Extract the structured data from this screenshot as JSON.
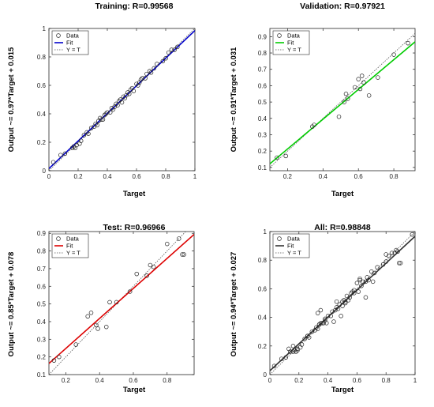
{
  "chart_data": [
    {
      "type": "scatter",
      "title": "Training: R=0.99568",
      "xlabel": "Target",
      "ylabel": "Output ~= 0.97*Target + 0.015",
      "xlim": [
        0,
        1
      ],
      "ylim": [
        0,
        1
      ],
      "x_ticks": [
        "0",
        "0.2",
        "0.4",
        "0.6",
        "0.8",
        "1"
      ],
      "y_ticks": [
        "0",
        "0.2",
        "0.4",
        "0.6",
        "0.8",
        "1"
      ],
      "fit_color": "#0000cc",
      "fit": {
        "slope": 0.97,
        "intercept": 0.015
      },
      "legend": [
        "Data",
        "Fit",
        "Y = T"
      ],
      "legend_position": "top-left",
      "grid": false,
      "points": [
        [
          0.03,
          0.06
        ],
        [
          0.08,
          0.11
        ],
        [
          0.11,
          0.12
        ],
        [
          0.16,
          0.16
        ],
        [
          0.17,
          0.17
        ],
        [
          0.18,
          0.16
        ],
        [
          0.19,
          0.18
        ],
        [
          0.21,
          0.19
        ],
        [
          0.22,
          0.21
        ],
        [
          0.24,
          0.25
        ],
        [
          0.26,
          0.27
        ],
        [
          0.27,
          0.26
        ],
        [
          0.29,
          0.3
        ],
        [
          0.31,
          0.31
        ],
        [
          0.32,
          0.33
        ],
        [
          0.33,
          0.32
        ],
        [
          0.34,
          0.35
        ],
        [
          0.35,
          0.37
        ],
        [
          0.36,
          0.36
        ],
        [
          0.37,
          0.36
        ],
        [
          0.38,
          0.39
        ],
        [
          0.39,
          0.4
        ],
        [
          0.4,
          0.41
        ],
        [
          0.42,
          0.41
        ],
        [
          0.43,
          0.44
        ],
        [
          0.44,
          0.43
        ],
        [
          0.45,
          0.45
        ],
        [
          0.46,
          0.47
        ],
        [
          0.47,
          0.46
        ],
        [
          0.48,
          0.49
        ],
        [
          0.49,
          0.5
        ],
        [
          0.5,
          0.48
        ],
        [
          0.51,
          0.52
        ],
        [
          0.52,
          0.51
        ],
        [
          0.53,
          0.53
        ],
        [
          0.54,
          0.55
        ],
        [
          0.55,
          0.54
        ],
        [
          0.56,
          0.57
        ],
        [
          0.57,
          0.58
        ],
        [
          0.58,
          0.56
        ],
        [
          0.6,
          0.61
        ],
        [
          0.61,
          0.6
        ],
        [
          0.62,
          0.62
        ],
        [
          0.63,
          0.64
        ],
        [
          0.64,
          0.65
        ],
        [
          0.66,
          0.65
        ],
        [
          0.67,
          0.68
        ],
        [
          0.69,
          0.7
        ],
        [
          0.7,
          0.69
        ],
        [
          0.72,
          0.72
        ],
        [
          0.74,
          0.75
        ],
        [
          0.78,
          0.77
        ],
        [
          0.8,
          0.79
        ],
        [
          0.82,
          0.83
        ],
        [
          0.84,
          0.85
        ],
        [
          0.86,
          0.85
        ],
        [
          0.88,
          0.87
        ]
      ]
    },
    {
      "type": "scatter",
      "title": "Validation: R=0.97921",
      "xlabel": "Target",
      "ylabel": "Output ~= 0.91*Target + 0.031",
      "xlim": [
        0.1,
        0.92
      ],
      "ylim": [
        0.08,
        0.95
      ],
      "x_ticks": [
        "0.2",
        "0.4",
        "0.6",
        "0.8"
      ],
      "y_ticks": [
        "0.1",
        "0.2",
        "0.3",
        "0.4",
        "0.5",
        "0.6",
        "0.7",
        "0.8",
        "0.9"
      ],
      "fit_color": "#00cc00",
      "fit": {
        "slope": 0.91,
        "intercept": 0.031
      },
      "legend": [
        "Data",
        "Fit",
        "Y = T"
      ],
      "legend_position": "top-left",
      "grid": false,
      "points": [
        [
          0.14,
          0.16
        ],
        [
          0.19,
          0.17
        ],
        [
          0.34,
          0.35
        ],
        [
          0.35,
          0.36
        ],
        [
          0.49,
          0.41
        ],
        [
          0.52,
          0.5
        ],
        [
          0.53,
          0.55
        ],
        [
          0.54,
          0.52
        ],
        [
          0.58,
          0.59
        ],
        [
          0.6,
          0.64
        ],
        [
          0.61,
          0.58
        ],
        [
          0.62,
          0.66
        ],
        [
          0.63,
          0.62
        ],
        [
          0.66,
          0.54
        ],
        [
          0.71,
          0.65
        ],
        [
          0.8,
          0.79
        ],
        [
          0.88,
          0.86
        ]
      ]
    },
    {
      "type": "scatter",
      "title": "Test: R=0.96966",
      "xlabel": "Target",
      "ylabel": "Output ~= 0.85*Target + 0.078",
      "xlim": [
        0.1,
        0.96
      ],
      "ylim": [
        0.1,
        0.91
      ],
      "x_ticks": [
        "0.2",
        "0.4",
        "0.6",
        "0.8"
      ],
      "y_ticks": [
        "0.1",
        "0.2",
        "0.3",
        "0.4",
        "0.5",
        "0.6",
        "0.7",
        "0.8",
        "0.9"
      ],
      "fit_color": "#dd0000",
      "fit": {
        "slope": 0.85,
        "intercept": 0.078
      },
      "legend": [
        "Data",
        "Fit",
        "Y = T"
      ],
      "legend_position": "top-left",
      "grid": false,
      "points": [
        [
          0.13,
          0.18
        ],
        [
          0.16,
          0.2
        ],
        [
          0.26,
          0.27
        ],
        [
          0.33,
          0.43
        ],
        [
          0.35,
          0.45
        ],
        [
          0.38,
          0.38
        ],
        [
          0.39,
          0.36
        ],
        [
          0.44,
          0.37
        ],
        [
          0.46,
          0.51
        ],
        [
          0.5,
          0.51
        ],
        [
          0.58,
          0.57
        ],
        [
          0.62,
          0.67
        ],
        [
          0.68,
          0.66
        ],
        [
          0.7,
          0.72
        ],
        [
          0.72,
          0.71
        ],
        [
          0.8,
          0.84
        ],
        [
          0.87,
          0.87
        ],
        [
          0.89,
          0.78
        ],
        [
          0.9,
          0.78
        ]
      ]
    },
    {
      "type": "scatter",
      "title": "All: R=0.98848",
      "xlabel": "Target",
      "ylabel": "Output ~= 0.94*Target + 0.027",
      "xlim": [
        0,
        1
      ],
      "ylim": [
        0,
        1
      ],
      "x_ticks": [
        "0",
        "0.2",
        "0.4",
        "0.6",
        "0.8",
        "1"
      ],
      "y_ticks": [
        "0",
        "0.2",
        "0.4",
        "0.6",
        "0.8",
        "1"
      ],
      "fit_color": "#333333",
      "fit": {
        "slope": 0.94,
        "intercept": 0.027
      },
      "legend": [
        "Data",
        "Fit",
        "Y = T"
      ],
      "legend_position": "top-left",
      "grid": false,
      "points": [
        [
          0.03,
          0.06
        ],
        [
          0.08,
          0.11
        ],
        [
          0.11,
          0.12
        ],
        [
          0.13,
          0.18
        ],
        [
          0.14,
          0.16
        ],
        [
          0.16,
          0.2
        ],
        [
          0.16,
          0.16
        ],
        [
          0.17,
          0.17
        ],
        [
          0.18,
          0.16
        ],
        [
          0.19,
          0.18
        ],
        [
          0.19,
          0.17
        ],
        [
          0.21,
          0.19
        ],
        [
          0.22,
          0.21
        ],
        [
          0.24,
          0.25
        ],
        [
          0.26,
          0.27
        ],
        [
          0.26,
          0.27
        ],
        [
          0.27,
          0.26
        ],
        [
          0.29,
          0.3
        ],
        [
          0.31,
          0.31
        ],
        [
          0.32,
          0.33
        ],
        [
          0.33,
          0.32
        ],
        [
          0.33,
          0.43
        ],
        [
          0.34,
          0.35
        ],
        [
          0.34,
          0.35
        ],
        [
          0.35,
          0.36
        ],
        [
          0.35,
          0.45
        ],
        [
          0.36,
          0.36
        ],
        [
          0.37,
          0.36
        ],
        [
          0.38,
          0.39
        ],
        [
          0.38,
          0.38
        ],
        [
          0.39,
          0.36
        ],
        [
          0.4,
          0.41
        ],
        [
          0.42,
          0.41
        ],
        [
          0.43,
          0.44
        ],
        [
          0.44,
          0.37
        ],
        [
          0.45,
          0.45
        ],
        [
          0.46,
          0.47
        ],
        [
          0.46,
          0.51
        ],
        [
          0.47,
          0.46
        ],
        [
          0.48,
          0.49
        ],
        [
          0.49,
          0.41
        ],
        [
          0.5,
          0.48
        ],
        [
          0.5,
          0.51
        ],
        [
          0.51,
          0.52
        ],
        [
          0.52,
          0.5
        ],
        [
          0.52,
          0.51
        ],
        [
          0.53,
          0.55
        ],
        [
          0.54,
          0.52
        ],
        [
          0.55,
          0.54
        ],
        [
          0.56,
          0.57
        ],
        [
          0.57,
          0.58
        ],
        [
          0.58,
          0.59
        ],
        [
          0.58,
          0.57
        ],
        [
          0.6,
          0.64
        ],
        [
          0.61,
          0.58
        ],
        [
          0.62,
          0.66
        ],
        [
          0.62,
          0.67
        ],
        [
          0.63,
          0.62
        ],
        [
          0.64,
          0.65
        ],
        [
          0.66,
          0.54
        ],
        [
          0.66,
          0.65
        ],
        [
          0.67,
          0.68
        ],
        [
          0.68,
          0.66
        ],
        [
          0.7,
          0.72
        ],
        [
          0.71,
          0.65
        ],
        [
          0.72,
          0.71
        ],
        [
          0.74,
          0.75
        ],
        [
          0.78,
          0.77
        ],
        [
          0.8,
          0.79
        ],
        [
          0.8,
          0.84
        ],
        [
          0.82,
          0.83
        ],
        [
          0.84,
          0.85
        ],
        [
          0.86,
          0.85
        ],
        [
          0.87,
          0.87
        ],
        [
          0.88,
          0.86
        ],
        [
          0.89,
          0.78
        ],
        [
          0.9,
          0.78
        ],
        [
          0.98,
          0.98
        ]
      ]
    }
  ]
}
